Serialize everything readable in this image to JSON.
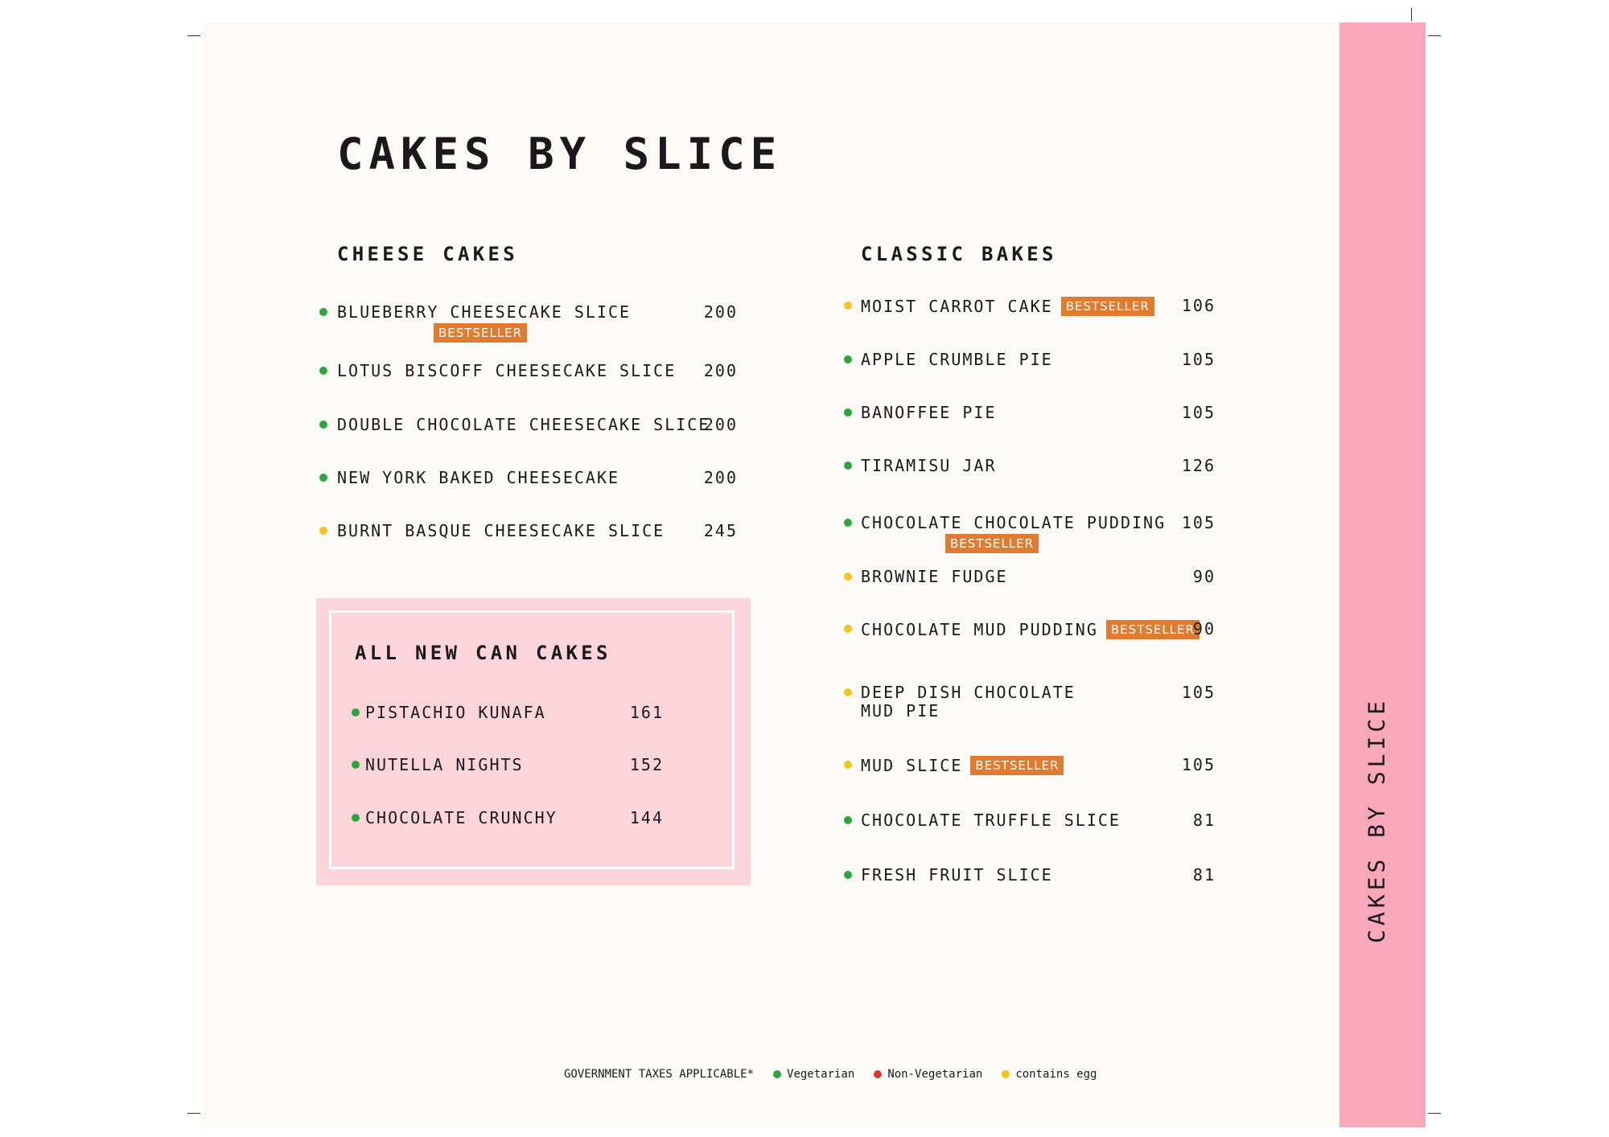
{
  "title": "CAKES BY SLICE",
  "side_label": "CAKES BY SLICE",
  "sections": [
    {
      "heading": "CHEESE CAKES",
      "items": [
        {
          "name": "BLUEBERRY CHEESECAKE SLICE",
          "price": 200,
          "badge": "BESTSELLER",
          "dot": "#2aa63a"
        },
        {
          "name": "LOTUS BISCOFF CHEESECAKE SLICE",
          "price": 200,
          "dot": "#2aa63a"
        },
        {
          "name": "DOUBLE CHOCOLATE CHEESECAKE SLICE",
          "price": 200,
          "dot": "#2aa63a"
        },
        {
          "name": "NEW YORK BAKED CHEESECAKE",
          "price": 200,
          "dot": "#2aa63a"
        },
        {
          "name": "BURNT BASQUE CHEESECAKE SLICE",
          "price": 245,
          "dot": "#f2c51f"
        }
      ]
    },
    {
      "heading": "CLASSIC BAKES",
      "items": [
        {
          "name": "MOIST CARROT CAKE",
          "price": 106,
          "badge": "BESTSELLER",
          "dot": "#f2c51f"
        },
        {
          "name": "APPLE CRUMBLE PIE",
          "price": 105,
          "dot": "#2aa63a"
        },
        {
          "name": "BANOFFEE PIE",
          "price": 105,
          "dot": "#2aa63a"
        },
        {
          "name": "TIRAMISU JAR",
          "price": 126,
          "dot": "#2aa63a"
        },
        {
          "name": "CHOCOLATE CHOCOLATE PUDDING",
          "price": 105,
          "badge": "BESTSELLER",
          "dot": "#2aa63a"
        },
        {
          "name": "BROWNIE FUDGE",
          "price": 90,
          "dot": "#f2c51f"
        },
        {
          "name": "CHOCOLATE MUD PUDDING",
          "price": 90,
          "badge": "BESTSELLER",
          "dot": "#f2c51f"
        },
        {
          "name": "DEEP DISH CHOCOLATE\nMUD PIE",
          "price": 105,
          "dot": "#f2c51f"
        },
        {
          "name": "MUD SLICE",
          "price": 105,
          "badge": "BESTSELLER",
          "dot": "#f2c51f"
        },
        {
          "name": "CHOCOLATE TRUFFLE SLICE",
          "price": 81,
          "dot": "#2aa63a"
        },
        {
          "name": "FRESH FRUIT SLICE",
          "price": 81,
          "dot": "#2aa63a"
        }
      ]
    },
    {
      "heading": "ALL NEW CAN CAKES",
      "items": [
        {
          "name": "PISTACHIO KUNAFA",
          "price": 161,
          "dot": "#2aa63a"
        },
        {
          "name": "NUTELLA NIGHTS",
          "price": 152,
          "dot": "#2aa63a"
        },
        {
          "name": "CHOCOLATE CRUNCHY",
          "price": 144,
          "dot": "#2aa63a"
        }
      ]
    }
  ],
  "footer": {
    "note": "GOVERNMENT TAXES APPLICABLE*",
    "legend": [
      {
        "label": "Vegetarian",
        "color": "#2aa63a"
      },
      {
        "label": "Non-Vegetarian",
        "color": "#d33a2c"
      },
      {
        "label": "contains egg",
        "color": "#f2c51f"
      }
    ]
  }
}
